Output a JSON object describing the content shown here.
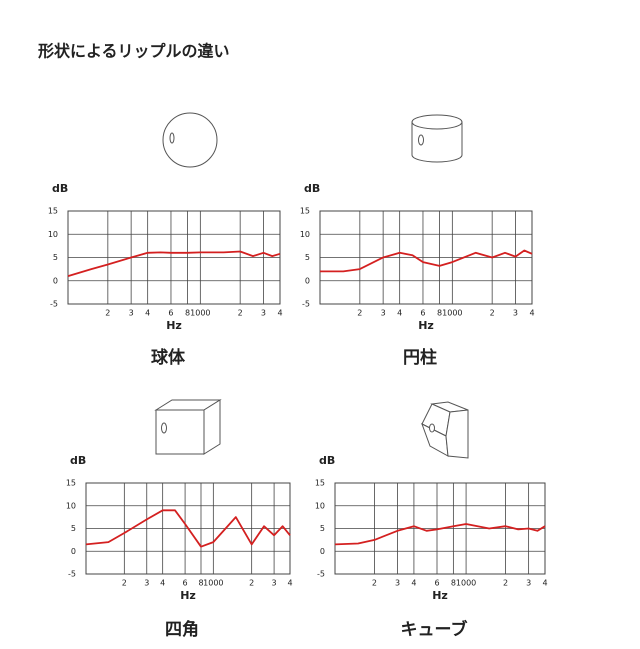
{
  "title": "形状によるリップルの違い",
  "chart_data": [
    {
      "type": "line",
      "title": "球体",
      "x_label": "Hz",
      "y_label": "dB",
      "x_scale": "log",
      "x": [
        100,
        150,
        200,
        300,
        400,
        500,
        600,
        800,
        1000,
        1500,
        2000,
        2500,
        3000,
        3500,
        4000
      ],
      "values": [
        1,
        2.5,
        3.5,
        5,
        6,
        6.1,
        6,
        6,
        6.1,
        6.1,
        6.3,
        5.3,
        6,
        5.3,
        5.8
      ],
      "color": "#d42020",
      "xlim": [
        100,
        4000
      ],
      "ylim": [
        -5,
        15
      ],
      "xticks": [
        {
          "value": 200,
          "label": "2"
        },
        {
          "value": 300,
          "label": "3"
        },
        {
          "value": 400,
          "label": "4"
        },
        {
          "value": 600,
          "label": "6"
        },
        {
          "value": 800,
          "label": "8"
        },
        1000,
        {
          "value": 2000,
          "label": "2"
        },
        {
          "value": 3000,
          "label": "3"
        },
        {
          "value": 4000,
          "label": "4"
        }
      ],
      "yticks": [
        -5,
        0,
        5,
        10,
        15
      ],
      "grid": true
    },
    {
      "type": "line",
      "title": "円柱",
      "x_label": "Hz",
      "y_label": "dB",
      "x_scale": "log",
      "x": [
        100,
        150,
        200,
        300,
        400,
        500,
        600,
        800,
        1000,
        1500,
        2000,
        2500,
        3000,
        3500,
        4000
      ],
      "values": [
        2,
        2,
        2.5,
        5,
        6,
        5.5,
        4,
        3.2,
        4,
        6,
        5,
        6,
        5.2,
        6.5,
        5.8
      ],
      "color": "#d42020",
      "xlim": [
        100,
        4000
      ],
      "ylim": [
        -5,
        15
      ],
      "xticks": [
        {
          "value": 200,
          "label": "2"
        },
        {
          "value": 300,
          "label": "3"
        },
        {
          "value": 400,
          "label": "4"
        },
        {
          "value": 600,
          "label": "6"
        },
        {
          "value": 800,
          "label": "8"
        },
        1000,
        {
          "value": 2000,
          "label": "2"
        },
        {
          "value": 3000,
          "label": "3"
        },
        {
          "value": 4000,
          "label": "4"
        }
      ],
      "yticks": [
        -5,
        0,
        5,
        10,
        15
      ],
      "grid": true
    },
    {
      "type": "line",
      "title": "四角",
      "x_label": "Hz",
      "y_label": "dB",
      "x_scale": "log",
      "x": [
        100,
        150,
        200,
        300,
        400,
        500,
        600,
        800,
        1000,
        1500,
        2000,
        2500,
        3000,
        3500,
        4000
      ],
      "values": [
        1.5,
        2,
        4,
        7,
        9,
        9,
        6,
        1,
        2,
        7.5,
        1.5,
        5.5,
        3.5,
        5.5,
        3.5
      ],
      "color": "#d42020",
      "xlim": [
        100,
        4000
      ],
      "ylim": [
        -5,
        15
      ],
      "xticks": [
        {
          "value": 200,
          "label": "2"
        },
        {
          "value": 300,
          "label": "3"
        },
        {
          "value": 400,
          "label": "4"
        },
        {
          "value": 600,
          "label": "6"
        },
        {
          "value": 800,
          "label": "8"
        },
        1000,
        {
          "value": 2000,
          "label": "2"
        },
        {
          "value": 3000,
          "label": "3"
        },
        {
          "value": 4000,
          "label": "4"
        }
      ],
      "yticks": [
        -5,
        0,
        5,
        10,
        15
      ],
      "grid": true
    },
    {
      "type": "line",
      "title": "キューブ",
      "x_label": "Hz",
      "y_label": "dB",
      "x_scale": "log",
      "x": [
        100,
        150,
        200,
        300,
        400,
        500,
        600,
        800,
        1000,
        1500,
        2000,
        2500,
        3000,
        3500,
        4000
      ],
      "values": [
        1.5,
        1.7,
        2.5,
        4.5,
        5.5,
        4.5,
        4.8,
        5.5,
        6,
        5,
        5.5,
        4.8,
        5,
        4.5,
        5.5
      ],
      "color": "#d42020",
      "xlim": [
        100,
        4000
      ],
      "ylim": [
        -5,
        15
      ],
      "xticks": [
        {
          "value": 200,
          "label": "2"
        },
        {
          "value": 300,
          "label": "3"
        },
        {
          "value": 400,
          "label": "4"
        },
        {
          "value": 600,
          "label": "6"
        },
        {
          "value": 800,
          "label": "8"
        },
        1000,
        {
          "value": 2000,
          "label": "2"
        },
        {
          "value": 3000,
          "label": "3"
        },
        {
          "value": 4000,
          "label": "4"
        }
      ],
      "yticks": [
        -5,
        0,
        5,
        10,
        15
      ],
      "grid": true
    }
  ]
}
